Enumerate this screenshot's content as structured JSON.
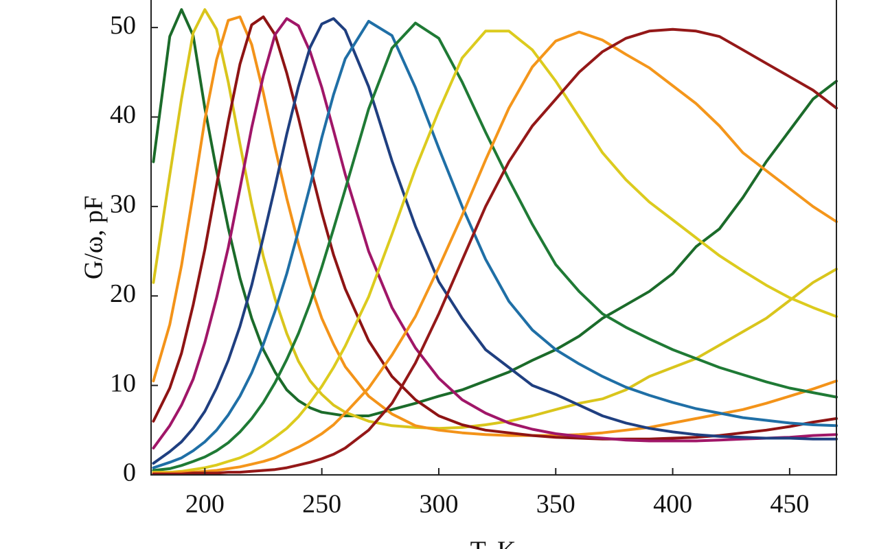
{
  "chart_data": {
    "type": "line",
    "xlabel": "T, K",
    "ylabel": "G/ω, pF",
    "x": [
      178,
      185,
      190,
      195,
      200,
      205,
      210,
      215,
      220,
      225,
      230,
      235,
      240,
      245,
      250,
      255,
      260,
      270,
      280,
      290,
      300,
      310,
      320,
      330,
      340,
      350,
      360,
      370,
      380,
      390,
      400,
      410,
      420,
      430,
      440,
      450,
      460,
      470
    ],
    "xlim": [
      177,
      470
    ],
    "ylim": [
      0,
      53
    ],
    "xticks": [
      200,
      250,
      300,
      350,
      400,
      450
    ],
    "yticks": [
      0,
      10,
      20,
      30,
      40,
      50
    ],
    "series": [
      {
        "color": "#1b6b2a",
        "values": [
          35,
          49,
          52,
          49.1,
          41,
          34,
          27.6,
          22,
          17.5,
          14,
          11.5,
          9.5,
          8.3,
          7.5,
          7,
          6.8,
          6.6,
          6.6,
          7.3,
          8,
          8.8,
          9.5,
          10.5,
          11.5,
          12.8,
          14,
          15.5,
          17.5,
          19,
          20.5,
          22.5,
          25.5,
          27.5,
          31,
          35,
          38.5,
          42,
          44
        ]
      },
      {
        "color": "#d9c51c",
        "values": [
          21.5,
          33.5,
          42,
          49.4,
          52,
          49.8,
          43.9,
          37,
          30.3,
          24.4,
          19.7,
          15.8,
          12.7,
          10.5,
          9,
          7.8,
          7,
          6,
          5.5,
          5.3,
          5.2,
          5.3,
          5.6,
          6,
          6.6,
          7.3,
          8,
          8.5,
          9.5,
          11,
          12,
          13,
          14.5,
          16,
          17.5,
          19.5,
          21.5,
          23
        ]
      },
      {
        "color": "#f39319",
        "values": [
          10.5,
          16.8,
          23.4,
          31.4,
          39.7,
          46.4,
          50.8,
          51.2,
          48.1,
          42.7,
          36.6,
          30.9,
          25.8,
          21.3,
          17.5,
          14.6,
          12.1,
          8.8,
          6.8,
          5.5,
          5,
          4.7,
          4.5,
          4.4,
          4.4,
          4.4,
          4.5,
          4.7,
          5,
          5.3,
          5.8,
          6.3,
          6.8,
          7.3,
          8,
          8.8,
          9.6,
          10.5
        ]
      },
      {
        "color": "#8e1414",
        "values": [
          6,
          9.7,
          13.6,
          19,
          25.2,
          32.4,
          39.5,
          45.9,
          50.3,
          51.2,
          49.2,
          44.9,
          39.9,
          34.5,
          29.3,
          24.6,
          20.8,
          15,
          11,
          8.4,
          6.6,
          5.6,
          5,
          4.7,
          4.4,
          4.2,
          4.1,
          4,
          4,
          4,
          4.1,
          4.2,
          4.4,
          4.7,
          5,
          5.4,
          5.9,
          6.3
        ]
      },
      {
        "color": "#a01668",
        "values": [
          3,
          5.5,
          7.8,
          10.7,
          14.8,
          19.8,
          25.4,
          32,
          38.8,
          44.6,
          49.2,
          51,
          50.2,
          47.3,
          43.3,
          38.5,
          33.6,
          25,
          18.7,
          14.2,
          10.8,
          8.4,
          6.9,
          5.8,
          5.1,
          4.6,
          4.3,
          4.1,
          3.9,
          3.8,
          3.8,
          3.8,
          3.9,
          4,
          4.1,
          4.2,
          4.4,
          4.5
        ]
      },
      {
        "color": "#1f3f80",
        "values": [
          1.3,
          2.6,
          3.7,
          5.2,
          7.1,
          9.7,
          12.8,
          16.6,
          21.2,
          26.6,
          32.2,
          38.1,
          43.4,
          47.8,
          50.4,
          51,
          49.7,
          43.4,
          35.1,
          27.8,
          21.6,
          17.5,
          14,
          12,
          10,
          9,
          7.8,
          6.6,
          5.8,
          5.2,
          4.8,
          4.5,
          4.3,
          4.2,
          4.1,
          4.1,
          4,
          4
        ]
      },
      {
        "color": "#1f6fa6",
        "values": [
          0.8,
          1.4,
          1.9,
          2.7,
          3.7,
          5,
          6.7,
          8.8,
          11.4,
          14.6,
          18.3,
          22.5,
          27.3,
          32.3,
          37.7,
          42.5,
          46.5,
          50.7,
          49.1,
          43.3,
          36.5,
          30,
          24.1,
          19.4,
          16.2,
          14,
          12.4,
          11,
          9.8,
          8.9,
          8.1,
          7.4,
          6.9,
          6.4,
          6.1,
          5.8,
          5.6,
          5.5
        ]
      },
      {
        "color": "#1f7a35",
        "values": [
          0.5,
          0.7,
          1.05,
          1.5,
          2,
          2.7,
          3.6,
          4.8,
          6.3,
          8.1,
          10.3,
          12.9,
          15.8,
          19.2,
          23.2,
          27.5,
          31.9,
          40.9,
          47.7,
          50.5,
          48.8,
          43.9,
          38.3,
          33,
          28,
          23.5,
          20.5,
          18,
          16.5,
          15.2,
          14,
          13,
          12,
          11.2,
          10.4,
          9.7,
          9.2,
          8.7
        ]
      },
      {
        "color": "#dccb1e",
        "values": [
          0.3,
          0.3,
          0.4,
          0.6,
          0.8,
          1.1,
          1.5,
          1.9,
          2.5,
          3.3,
          4.2,
          5.2,
          6.5,
          8.1,
          9.9,
          12,
          14.4,
          19.9,
          26.9,
          34.2,
          40.7,
          46.6,
          49.6,
          49.6,
          47.5,
          44,
          40,
          36,
          33,
          30.5,
          28.5,
          26.5,
          24.5,
          22.8,
          21.2,
          19.8,
          18.7,
          17.7
        ]
      },
      {
        "color": "#f4961b",
        "values": [
          0.2,
          0.2,
          0.3,
          0.3,
          0.4,
          0.5,
          0.7,
          0.9,
          1.2,
          1.5,
          1.9,
          2.5,
          3.1,
          3.8,
          4.6,
          5.6,
          6.9,
          9.7,
          13.4,
          17.7,
          23.2,
          29,
          35.2,
          41,
          45.6,
          48.5,
          49.5,
          48.6,
          47,
          45.5,
          43.5,
          41.5,
          39,
          36,
          34,
          32,
          30,
          28.3
        ]
      },
      {
        "color": "#941818",
        "values": [
          0.1,
          0.1,
          0.1,
          0.2,
          0.2,
          0.2,
          0.3,
          0.3,
          0.4,
          0.5,
          0.6,
          0.8,
          1.1,
          1.4,
          1.8,
          2.3,
          3,
          5,
          8,
          12.5,
          18,
          24,
          30,
          35,
          39,
          42,
          45,
          47.3,
          48.8,
          49.6,
          49.8,
          49.6,
          49,
          47.5,
          46,
          44.5,
          43,
          41
        ]
      }
    ]
  }
}
